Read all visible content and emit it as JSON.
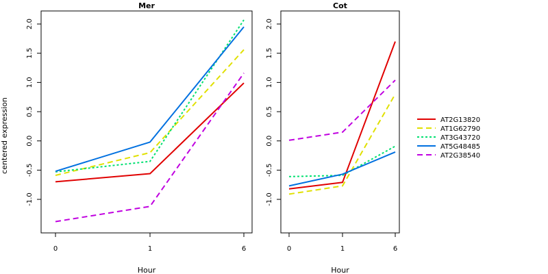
{
  "chart_data": [
    {
      "type": "line",
      "title": "Mer",
      "xlabel": "Hour",
      "ylabel": "centered expression",
      "categories": [
        "0",
        "1",
        "6"
      ],
      "yticks": [
        "-1.0",
        "-0.5",
        "0.0",
        "0.5",
        "1.0",
        "1.5",
        "2.0"
      ],
      "ylim": [
        -1.5,
        2.2
      ],
      "series": [
        {
          "name": "AT2G13820",
          "values": [
            -0.7,
            -0.56,
            0.99
          ]
        },
        {
          "name": "AT1G62790",
          "values": [
            -0.59,
            -0.2,
            1.56
          ]
        },
        {
          "name": "AT3G43720",
          "values": [
            -0.53,
            -0.35,
            2.07
          ]
        },
        {
          "name": "AT5G48485",
          "values": [
            -0.52,
            -0.02,
            1.95
          ]
        },
        {
          "name": "AT2G38540",
          "values": [
            -1.38,
            -1.12,
            1.16
          ]
        }
      ]
    },
    {
      "type": "line",
      "title": "Cot",
      "xlabel": "Hour",
      "categories": [
        "0",
        "1",
        "6"
      ],
      "yticks": [
        "-1.0",
        "-0.5",
        "0.0",
        "0.5",
        "1.0",
        "1.5",
        "2.0"
      ],
      "ylim": [
        -1.5,
        2.2
      ],
      "series": [
        {
          "name": "AT2G13820",
          "values": [
            -0.82,
            -0.71,
            1.7
          ]
        },
        {
          "name": "AT1G62790",
          "values": [
            -0.91,
            -0.77,
            0.8
          ]
        },
        {
          "name": "AT3G43720",
          "values": [
            -0.61,
            -0.59,
            -0.09
          ]
        },
        {
          "name": "AT5G48485",
          "values": [
            -0.77,
            -0.57,
            -0.19
          ]
        },
        {
          "name": "AT2G38540",
          "values": [
            0.01,
            0.15,
            1.04
          ]
        }
      ]
    }
  ],
  "legend": {
    "placement": "right",
    "entries": [
      {
        "name": "AT2G13820",
        "color": "#e00000",
        "dash": "solid"
      },
      {
        "name": "AT1G62790",
        "color": "#e0e000",
        "dash": "dashed"
      },
      {
        "name": "AT3G43720",
        "color": "#00e070",
        "dash": "dotted"
      },
      {
        "name": "AT5G48485",
        "color": "#0070e0",
        "dash": "solid"
      },
      {
        "name": "AT2G38540",
        "color": "#c000e0",
        "dash": "dashed"
      }
    ]
  }
}
